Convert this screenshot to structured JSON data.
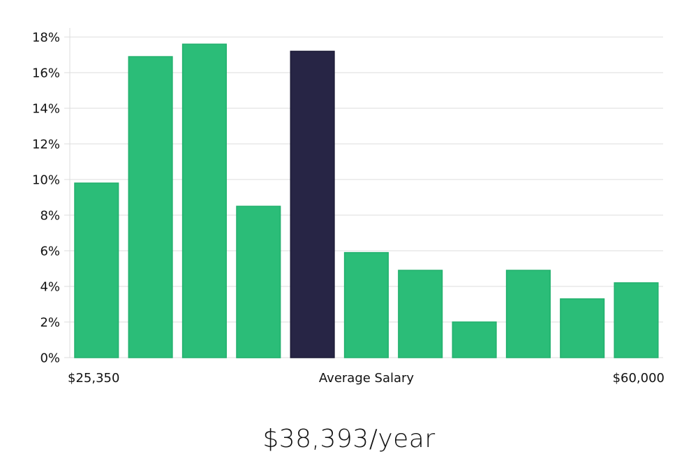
{
  "chart_data": {
    "type": "bar",
    "values": [
      9.8,
      16.9,
      17.6,
      8.5,
      17.2,
      5.9,
      4.9,
      2.0,
      4.9,
      3.3,
      4.2
    ],
    "highlight_index": 4,
    "ylim": [
      0,
      18
    ],
    "yticks": [
      0,
      2,
      4,
      6,
      8,
      10,
      12,
      14,
      16,
      18
    ],
    "ytick_labels": [
      "0%",
      "2%",
      "4%",
      "6%",
      "8%",
      "10%",
      "12%",
      "14%",
      "16%",
      "18%"
    ],
    "x_labels": {
      "left": "$25,350",
      "center": "Average Salary",
      "right": "$60,000"
    },
    "grid": true,
    "colors": {
      "bar": "#2bbd78",
      "bar_edge": "#22b06d",
      "highlight": "#272545",
      "highlight_edge": "#1b1a36"
    }
  },
  "salary": {
    "text": "$38,393/year"
  }
}
